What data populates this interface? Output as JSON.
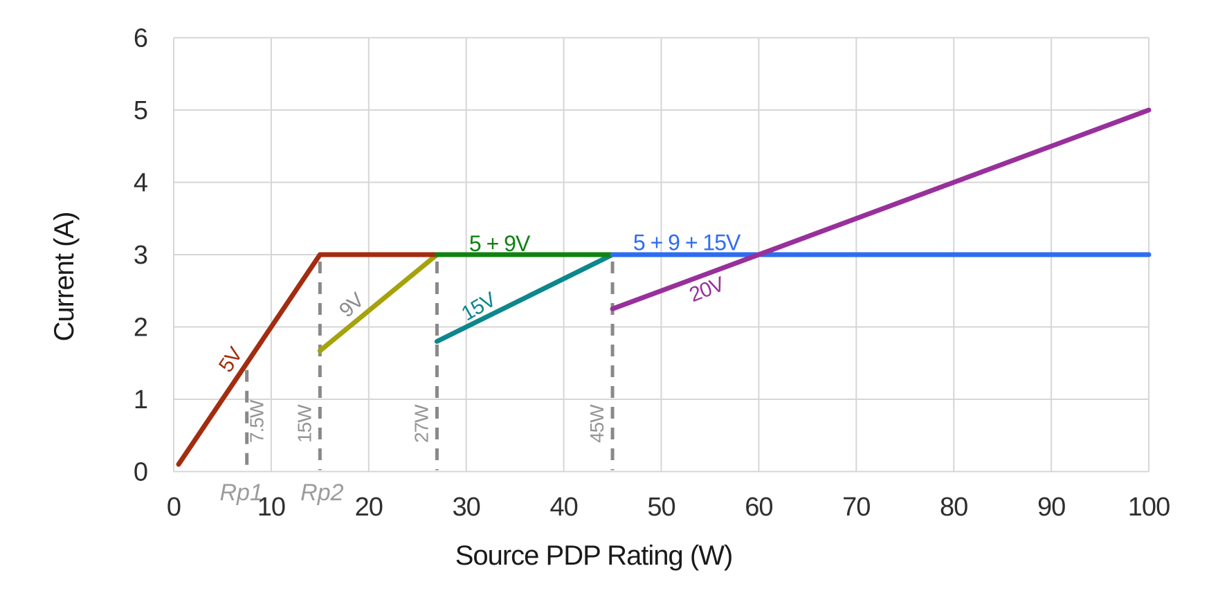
{
  "colors": {
    "background": "#ffffff",
    "grid": "#d6d6d6",
    "threshold_dash": "#898989",
    "tick_text": "#2e2e2e",
    "axis_title_text": "#1a1a1a",
    "watt_label_text": "#949494",
    "rp_label_text": "#9c9c9c"
  },
  "chart_data": {
    "type": "line",
    "title": "",
    "xlabel": "Source PDP Rating (W)",
    "ylabel": "Current (A)",
    "xlim": [
      0,
      100
    ],
    "ylim": [
      0,
      6
    ],
    "xticks": [
      0,
      10,
      20,
      30,
      40,
      50,
      60,
      70,
      80,
      90,
      100
    ],
    "yticks": [
      0,
      1,
      2,
      3,
      4,
      5,
      6
    ],
    "grid": true,
    "legend": "none (inline series labels)",
    "series": [
      {
        "name": "9V",
        "color": "#a5a20c",
        "points": [
          [
            15,
            1.67
          ],
          [
            27,
            3
          ]
        ],
        "label": {
          "text": "9V",
          "w": 18.7,
          "a": 2.23,
          "angle": -43,
          "color": "#8c8c8c"
        }
      },
      {
        "name": "15V",
        "color": "#0c878d",
        "points": [
          [
            27,
            1.8
          ],
          [
            45,
            3
          ]
        ],
        "label": {
          "text": "15V",
          "w": 31.6,
          "a": 2.2,
          "angle": -30,
          "color": "#0c878d"
        }
      },
      {
        "name": "5V",
        "color": "#a32c0f",
        "points": [
          [
            0.5,
            0.1
          ],
          [
            15,
            3
          ],
          [
            27,
            3
          ]
        ],
        "label": {
          "text": "5V",
          "w": 6.4,
          "a": 1.49,
          "angle": -56,
          "color": "#a32c0f"
        }
      },
      {
        "name": "5 + 9V",
        "color": "#108212",
        "points": [
          [
            27,
            3
          ],
          [
            45,
            3
          ]
        ],
        "label": {
          "text": "5 + 9V",
          "w": 33.4,
          "a": 3.05,
          "angle": 0,
          "color": "#108212"
        }
      },
      {
        "name": "5 + 9 + 15V",
        "color": "#2f6cf0",
        "points": [
          [
            45,
            3
          ],
          [
            100,
            3
          ]
        ],
        "label": {
          "text": "5 + 9 + 15V",
          "w": 52.6,
          "a": 3.06,
          "angle": 0,
          "color": "#2f6cf0"
        }
      },
      {
        "name": "20V",
        "color": "#98309b",
        "points": [
          [
            45,
            2.25
          ],
          [
            100,
            5
          ]
        ],
        "label": {
          "text": "20V",
          "w": 54.9,
          "a": 2.43,
          "angle": -21,
          "color": "#98309b"
        }
      }
    ],
    "thresholds": [
      {
        "w": 7.5,
        "top_a": 1.5,
        "watt_label": "7.5W",
        "watt_side": "right",
        "rp_label": "Rp1",
        "rp_dx": -8
      },
      {
        "w": 15,
        "top_a": 3,
        "watt_label": "15W",
        "watt_side": "left",
        "rp_label": "Rp2",
        "rp_dx": 3
      },
      {
        "w": 27,
        "top_a": 3,
        "watt_label": "27W",
        "watt_side": "left",
        "rp_label": "",
        "rp_dx": 0
      },
      {
        "w": 45,
        "top_a": 3,
        "watt_label": "45W",
        "watt_side": "left",
        "rp_label": "",
        "rp_dx": 0
      }
    ]
  }
}
